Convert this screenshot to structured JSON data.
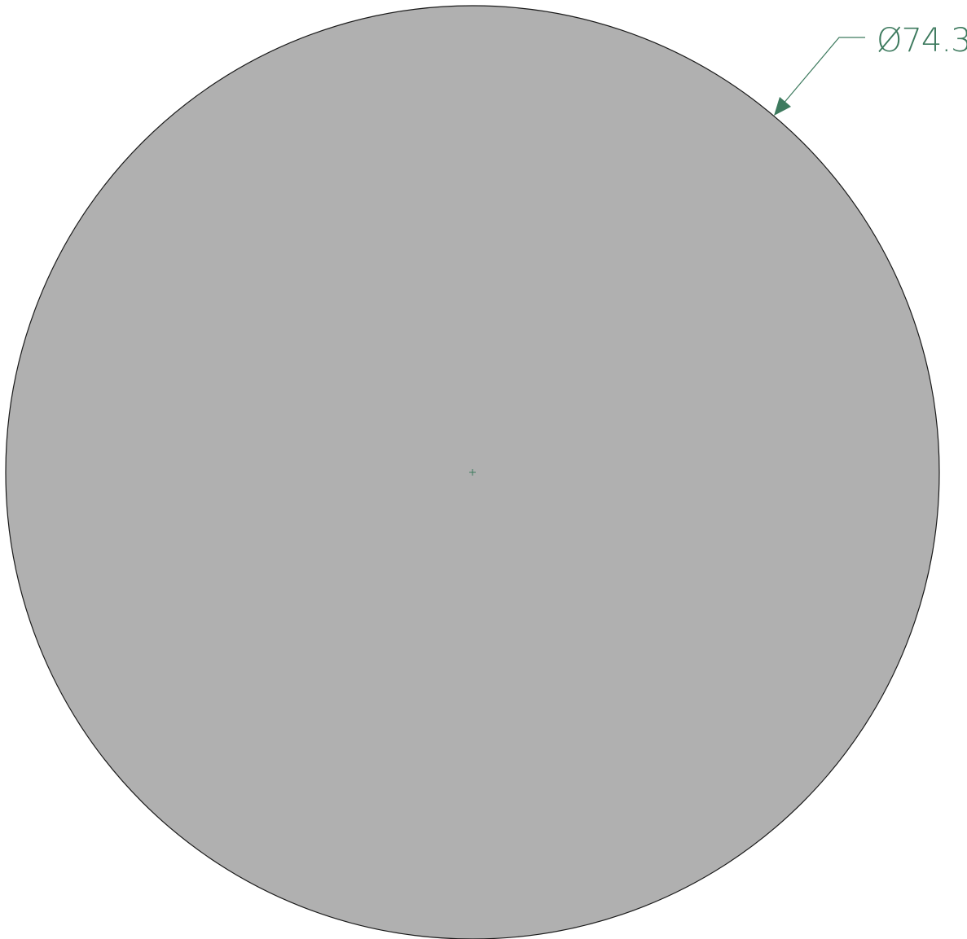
{
  "drawing": {
    "diameter_label": "Ø74.3",
    "fill_color": "#b0b0b0",
    "outline_color": "#1a1a1a",
    "dimension_color": "#3d7a5e"
  }
}
